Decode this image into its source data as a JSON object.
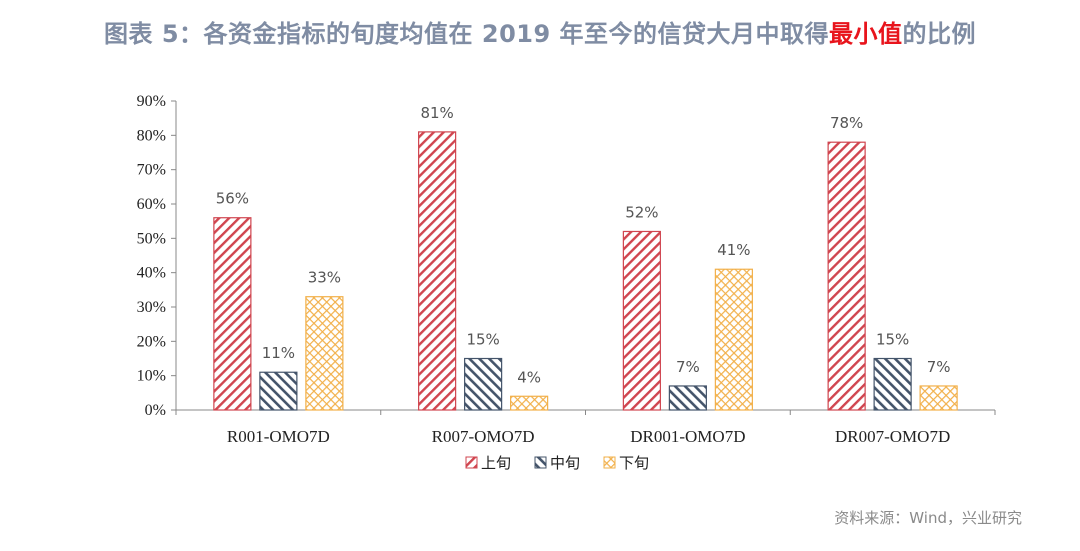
{
  "title": {
    "prefix": "图表 5：各资金指标的旬度均值在 2019 年至今的信贷大月中取得",
    "highlight": "最小值",
    "suffix": "的比例"
  },
  "source": "资料来源：Wind，兴业研究",
  "chart_data": {
    "type": "bar",
    "categories": [
      "R001-OMO7D",
      "R007-OMO7D",
      "DR001-OMO7D",
      "DR007-OMO7D"
    ],
    "series": [
      {
        "name": "上旬",
        "values": [
          56,
          81,
          52,
          78
        ],
        "labels": [
          "56%",
          "81%",
          "52%",
          "78%"
        ],
        "color": "#d0454f",
        "pattern": "diagonal-down"
      },
      {
        "name": "中旬",
        "values": [
          11,
          15,
          7,
          15
        ],
        "labels": [
          "11%",
          "15%",
          "7%",
          "15%"
        ],
        "color": "#44546a",
        "pattern": "diagonal-up"
      },
      {
        "name": "下旬",
        "values": [
          33,
          4,
          41,
          7
        ],
        "labels": [
          "33%",
          "4%",
          "41%",
          "7%"
        ],
        "color": "#f2b04a",
        "pattern": "cross-hatch"
      }
    ],
    "yticks": [
      "0%",
      "10%",
      "20%",
      "30%",
      "40%",
      "50%",
      "60%",
      "70%",
      "80%",
      "90%"
    ],
    "ylim": [
      0,
      90
    ],
    "grid": false,
    "legend": "bottom"
  }
}
